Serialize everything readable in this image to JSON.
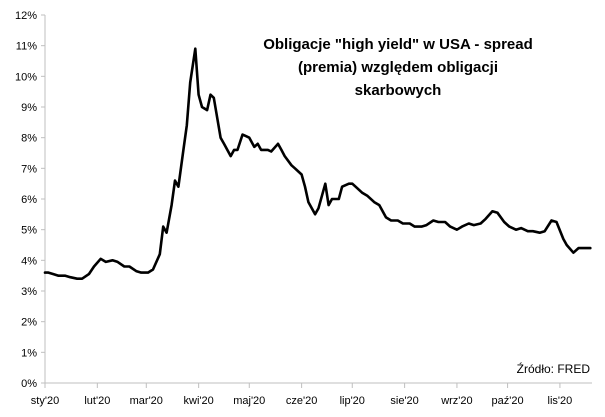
{
  "chart_data": {
    "type": "line",
    "title_lines": [
      "Obligacje \"high yield\" w USA - spread",
      "(premia) względem obligacji",
      "skarbowych"
    ],
    "source": "Źródło: FRED",
    "xlabel": "",
    "ylabel": "",
    "ylim": [
      0,
      12
    ],
    "y_ticks": [
      "0%",
      "1%",
      "2%",
      "3%",
      "4%",
      "5%",
      "6%",
      "7%",
      "8%",
      "9%",
      "10%",
      "11%",
      "12%"
    ],
    "x_ticks": [
      {
        "label": "sty'20",
        "date": "2020-01-01"
      },
      {
        "label": "lut'20",
        "date": "2020-02-01"
      },
      {
        "label": "mar'20",
        "date": "2020-03-01"
      },
      {
        "label": "kwi'20",
        "date": "2020-04-01"
      },
      {
        "label": "maj'20",
        "date": "2020-05-01"
      },
      {
        "label": "cze'20",
        "date": "2020-06-01"
      },
      {
        "label": "lip'20",
        "date": "2020-07-01"
      },
      {
        "label": "sie'20",
        "date": "2020-08-01"
      },
      {
        "label": "wrz'20",
        "date": "2020-09-01"
      },
      {
        "label": "paź'20",
        "date": "2020-10-01"
      },
      {
        "label": "lis'20",
        "date": "2020-11-01"
      }
    ],
    "x_range": [
      "2020-01-01",
      "2020-11-20"
    ],
    "grid": false,
    "line_color": "#000000",
    "series": [
      {
        "x": [
          "2020-01-01",
          "2020-01-03",
          "2020-01-06",
          "2020-01-09",
          "2020-01-13",
          "2020-01-16",
          "2020-01-20",
          "2020-01-23",
          "2020-01-27",
          "2020-01-30",
          "2020-02-03",
          "2020-02-06",
          "2020-02-10",
          "2020-02-13",
          "2020-02-17",
          "2020-02-20",
          "2020-02-24",
          "2020-02-27",
          "2020-03-02",
          "2020-03-05",
          "2020-03-09",
          "2020-03-11",
          "2020-03-13",
          "2020-03-16",
          "2020-03-18",
          "2020-03-20",
          "2020-03-23",
          "2020-03-25",
          "2020-03-27",
          "2020-03-30",
          "2020-04-01",
          "2020-04-03",
          "2020-04-06",
          "2020-04-08",
          "2020-04-10",
          "2020-04-14",
          "2020-04-16",
          "2020-04-20",
          "2020-04-22",
          "2020-04-24",
          "2020-04-27",
          "2020-04-29",
          "2020-05-01",
          "2020-05-04",
          "2020-05-06",
          "2020-05-08",
          "2020-05-12",
          "2020-05-14",
          "2020-05-18",
          "2020-05-20",
          "2020-05-22",
          "2020-05-26",
          "2020-05-28",
          "2020-06-01",
          "2020-06-03",
          "2020-06-05",
          "2020-06-09",
          "2020-06-11",
          "2020-06-15",
          "2020-06-17",
          "2020-06-19",
          "2020-06-23",
          "2020-06-25",
          "2020-06-29",
          "2020-07-01",
          "2020-07-03",
          "2020-07-07",
          "2020-07-10",
          "2020-07-14",
          "2020-07-17",
          "2020-07-21",
          "2020-07-24",
          "2020-07-28",
          "2020-07-31",
          "2020-08-04",
          "2020-08-07",
          "2020-08-11",
          "2020-08-14",
          "2020-08-18",
          "2020-08-21",
          "2020-08-25",
          "2020-08-28",
          "2020-09-01",
          "2020-09-04",
          "2020-09-08",
          "2020-09-11",
          "2020-09-15",
          "2020-09-18",
          "2020-09-22",
          "2020-09-25",
          "2020-09-29",
          "2020-10-02",
          "2020-10-06",
          "2020-10-09",
          "2020-10-13",
          "2020-10-16",
          "2020-10-20",
          "2020-10-23",
          "2020-10-27",
          "2020-10-30",
          "2020-11-03",
          "2020-11-05",
          "2020-11-09",
          "2020-11-12",
          "2020-11-16",
          "2020-11-19"
        ],
        "values": [
          3.6,
          3.6,
          3.55,
          3.5,
          3.5,
          3.45,
          3.4,
          3.4,
          3.55,
          3.8,
          4.05,
          3.95,
          4.0,
          3.95,
          3.8,
          3.8,
          3.65,
          3.6,
          3.6,
          3.7,
          4.2,
          5.1,
          4.9,
          5.8,
          6.6,
          6.4,
          7.6,
          8.4,
          9.8,
          10.9,
          9.4,
          9.0,
          8.9,
          9.4,
          9.3,
          8.0,
          7.8,
          7.4,
          7.6,
          7.6,
          8.1,
          8.05,
          8.0,
          7.7,
          7.8,
          7.6,
          7.6,
          7.55,
          7.8,
          7.6,
          7.4,
          7.1,
          7.0,
          6.8,
          6.4,
          5.9,
          5.5,
          5.7,
          6.5,
          5.8,
          6.0,
          6.0,
          6.4,
          6.5,
          6.5,
          6.4,
          6.2,
          6.1,
          5.9,
          5.8,
          5.4,
          5.3,
          5.3,
          5.2,
          5.2,
          5.1,
          5.1,
          5.15,
          5.3,
          5.25,
          5.25,
          5.1,
          5.0,
          5.1,
          5.2,
          5.15,
          5.2,
          5.35,
          5.6,
          5.55,
          5.25,
          5.1,
          5.0,
          5.05,
          4.95,
          4.95,
          4.9,
          4.95,
          5.3,
          5.25,
          4.7,
          4.5,
          4.25,
          4.4,
          4.4,
          4.4
        ]
      }
    ]
  }
}
